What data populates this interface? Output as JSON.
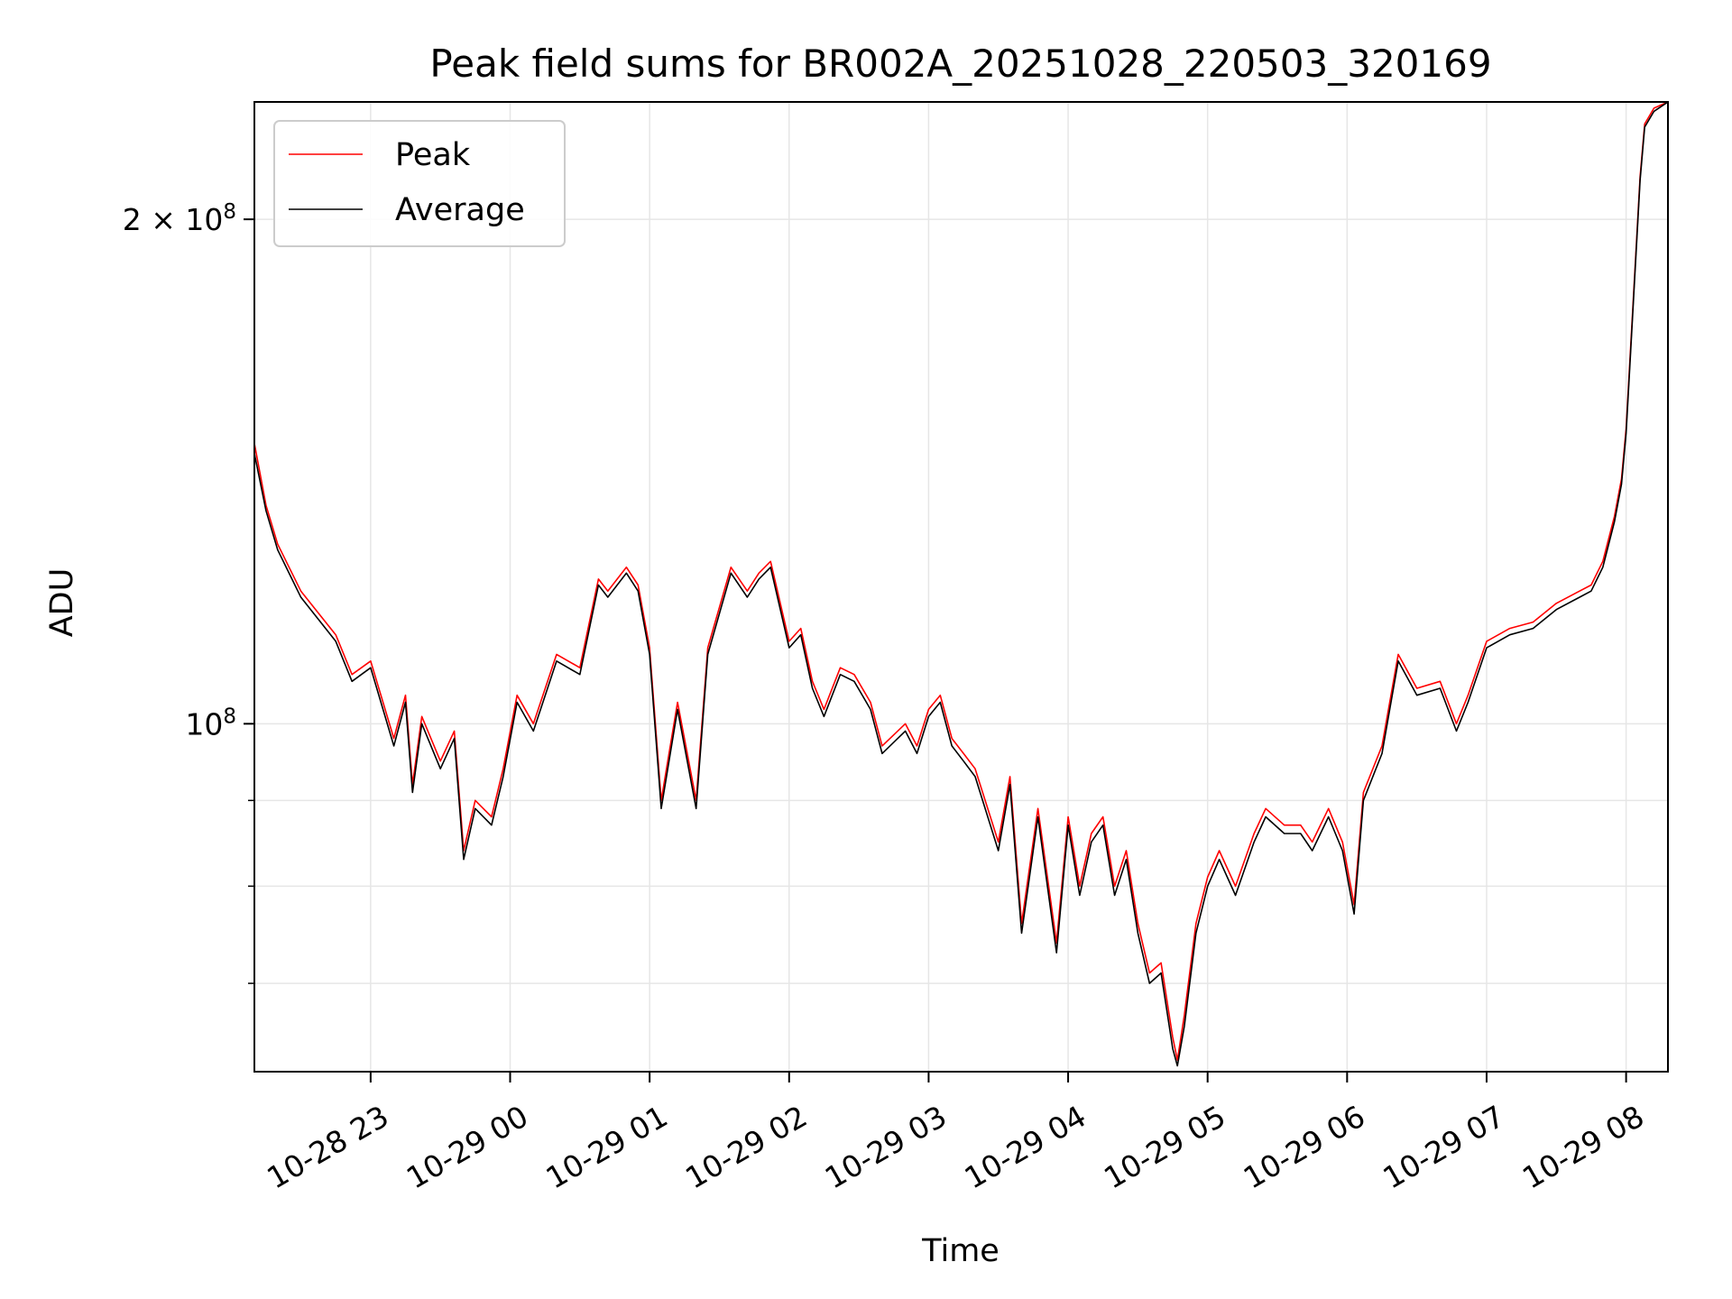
{
  "chart_data": {
    "type": "line",
    "title": "Peak field sums for BR002A_20251028_220503_320169",
    "xlabel": "Time",
    "ylabel": "ADU",
    "y_scale": "log",
    "ylim": [
      62000000,
      235000000
    ],
    "xlim": [
      "2025-10-28 22:10",
      "2025-10-29 08:18"
    ],
    "grid": true,
    "legend": {
      "position": "top-left",
      "entries": [
        "Peak",
        "Average"
      ]
    },
    "x_ticks": [
      "10-28 23",
      "10-29 00",
      "10-29 01",
      "10-29 02",
      "10-29 03",
      "10-29 04",
      "10-29 05",
      "10-29 06",
      "10-29 07",
      "10-29 08"
    ],
    "x_tick_times": [
      "2025-10-28 23:00",
      "2025-10-29 00:00",
      "2025-10-29 01:00",
      "2025-10-29 02:00",
      "2025-10-29 03:00",
      "2025-10-29 04:00",
      "2025-10-29 05:00",
      "2025-10-29 06:00",
      "2025-10-29 07:00",
      "2025-10-29 08:00"
    ],
    "y_major_ticks": [
      {
        "value": 100000000,
        "mantissa": "",
        "exp": "8"
      },
      {
        "value": 200000000,
        "mantissa": "2",
        "exp": "8"
      }
    ],
    "y_minor_ticks": [
      70000000,
      80000000,
      90000000
    ],
    "series": [
      {
        "name": "Peak",
        "color": "#ff0000",
        "x": [
          "2025-10-28 22:10",
          "2025-10-28 22:15",
          "2025-10-28 22:20",
          "2025-10-28 22:30",
          "2025-10-28 22:45",
          "2025-10-28 22:52",
          "2025-10-28 23:00",
          "2025-10-28 23:10",
          "2025-10-28 23:15",
          "2025-10-28 23:18",
          "2025-10-28 23:22",
          "2025-10-28 23:30",
          "2025-10-28 23:36",
          "2025-10-28 23:40",
          "2025-10-28 23:45",
          "2025-10-28 23:52",
          "2025-10-28 23:57",
          "2025-10-29 00:03",
          "2025-10-29 00:10",
          "2025-10-29 00:20",
          "2025-10-29 00:30",
          "2025-10-29 00:38",
          "2025-10-29 00:42",
          "2025-10-29 00:50",
          "2025-10-29 00:55",
          "2025-10-29 01:00",
          "2025-10-29 01:05",
          "2025-10-29 01:12",
          "2025-10-29 01:20",
          "2025-10-29 01:25",
          "2025-10-29 01:35",
          "2025-10-29 01:42",
          "2025-10-29 01:47",
          "2025-10-29 01:52",
          "2025-10-29 02:00",
          "2025-10-29 02:05",
          "2025-10-29 02:10",
          "2025-10-29 02:15",
          "2025-10-29 02:22",
          "2025-10-29 02:28",
          "2025-10-29 02:35",
          "2025-10-29 02:40",
          "2025-10-29 02:50",
          "2025-10-29 02:55",
          "2025-10-29 03:00",
          "2025-10-29 03:05",
          "2025-10-29 03:10",
          "2025-10-29 03:15",
          "2025-10-29 03:20",
          "2025-10-29 03:30",
          "2025-10-29 03:35",
          "2025-10-29 03:40",
          "2025-10-29 03:47",
          "2025-10-29 03:55",
          "2025-10-29 04:00",
          "2025-10-29 04:05",
          "2025-10-29 04:10",
          "2025-10-29 04:15",
          "2025-10-29 04:20",
          "2025-10-29 04:25",
          "2025-10-29 04:30",
          "2025-10-29 04:35",
          "2025-10-29 04:40",
          "2025-10-29 04:45",
          "2025-10-29 04:47",
          "2025-10-29 04:50",
          "2025-10-29 04:55",
          "2025-10-29 05:00",
          "2025-10-29 05:05",
          "2025-10-29 05:12",
          "2025-10-29 05:20",
          "2025-10-29 05:25",
          "2025-10-29 05:33",
          "2025-10-29 05:40",
          "2025-10-29 05:45",
          "2025-10-29 05:52",
          "2025-10-29 05:58",
          "2025-10-29 06:03",
          "2025-10-29 06:07",
          "2025-10-29 06:15",
          "2025-10-29 06:22",
          "2025-10-29 06:30",
          "2025-10-29 06:40",
          "2025-10-29 06:47",
          "2025-10-29 06:52",
          "2025-10-29 07:00",
          "2025-10-29 07:10",
          "2025-10-29 07:20",
          "2025-10-29 07:30",
          "2025-10-29 07:40",
          "2025-10-29 07:45",
          "2025-10-29 07:50",
          "2025-10-29 07:55",
          "2025-10-29 07:58",
          "2025-10-29 08:00",
          "2025-10-29 08:03",
          "2025-10-29 08:06",
          "2025-10-29 08:08",
          "2025-10-29 08:12",
          "2025-10-29 08:18"
        ],
        "y": [
          147000000,
          135000000,
          128000000,
          120000000,
          113000000,
          107000000,
          109000000,
          98000000,
          104000000,
          92000000,
          101000000,
          95000000,
          99000000,
          84000000,
          90000000,
          88000000,
          94000000,
          104000000,
          100000000,
          110000000,
          108000000,
          122000000,
          120000000,
          124000000,
          121000000,
          111000000,
          90000000,
          103000000,
          90000000,
          111000000,
          124000000,
          120000000,
          123000000,
          125000000,
          112000000,
          114000000,
          106000000,
          102000000,
          108000000,
          107000000,
          103000000,
          97000000,
          100000000,
          97000000,
          102000000,
          104000000,
          98000000,
          96000000,
          94000000,
          85000000,
          93000000,
          76000000,
          89000000,
          74000000,
          88000000,
          80000000,
          86000000,
          88000000,
          80000000,
          84000000,
          76000000,
          71000000,
          72000000,
          65000000,
          63000000,
          67000000,
          76000000,
          81000000,
          84000000,
          80000000,
          86000000,
          89000000,
          87000000,
          87000000,
          85000000,
          89000000,
          85000000,
          78000000,
          91000000,
          97000000,
          110000000,
          105000000,
          106000000,
          100000000,
          104000000,
          112000000,
          114000000,
          115000000,
          118000000,
          120000000,
          121000000,
          125000000,
          133000000,
          140000000,
          150000000,
          178000000,
          212000000,
          228000000,
          233000000,
          235000000
        ]
      },
      {
        "name": "Average",
        "color": "#000000",
        "x": [
          "2025-10-28 22:10",
          "2025-10-28 22:15",
          "2025-10-28 22:20",
          "2025-10-28 22:30",
          "2025-10-28 22:45",
          "2025-10-28 22:52",
          "2025-10-28 23:00",
          "2025-10-28 23:10",
          "2025-10-28 23:15",
          "2025-10-28 23:18",
          "2025-10-28 23:22",
          "2025-10-28 23:30",
          "2025-10-28 23:36",
          "2025-10-28 23:40",
          "2025-10-28 23:45",
          "2025-10-28 23:52",
          "2025-10-28 23:57",
          "2025-10-29 00:03",
          "2025-10-29 00:10",
          "2025-10-29 00:20",
          "2025-10-29 00:30",
          "2025-10-29 00:38",
          "2025-10-29 00:42",
          "2025-10-29 00:50",
          "2025-10-29 00:55",
          "2025-10-29 01:00",
          "2025-10-29 01:05",
          "2025-10-29 01:12",
          "2025-10-29 01:20",
          "2025-10-29 01:25",
          "2025-10-29 01:35",
          "2025-10-29 01:42",
          "2025-10-29 01:47",
          "2025-10-29 01:52",
          "2025-10-29 02:00",
          "2025-10-29 02:05",
          "2025-10-29 02:10",
          "2025-10-29 02:15",
          "2025-10-29 02:22",
          "2025-10-29 02:28",
          "2025-10-29 02:35",
          "2025-10-29 02:40",
          "2025-10-29 02:50",
          "2025-10-29 02:55",
          "2025-10-29 03:00",
          "2025-10-29 03:05",
          "2025-10-29 03:10",
          "2025-10-29 03:15",
          "2025-10-29 03:20",
          "2025-10-29 03:30",
          "2025-10-29 03:35",
          "2025-10-29 03:40",
          "2025-10-29 03:47",
          "2025-10-29 03:55",
          "2025-10-29 04:00",
          "2025-10-29 04:05",
          "2025-10-29 04:10",
          "2025-10-29 04:15",
          "2025-10-29 04:20",
          "2025-10-29 04:25",
          "2025-10-29 04:30",
          "2025-10-29 04:35",
          "2025-10-29 04:40",
          "2025-10-29 04:45",
          "2025-10-29 04:47",
          "2025-10-29 04:50",
          "2025-10-29 04:55",
          "2025-10-29 05:00",
          "2025-10-29 05:05",
          "2025-10-29 05:12",
          "2025-10-29 05:20",
          "2025-10-29 05:25",
          "2025-10-29 05:33",
          "2025-10-29 05:40",
          "2025-10-29 05:45",
          "2025-10-29 05:52",
          "2025-10-29 05:58",
          "2025-10-29 06:03",
          "2025-10-29 06:07",
          "2025-10-29 06:15",
          "2025-10-29 06:22",
          "2025-10-29 06:30",
          "2025-10-29 06:40",
          "2025-10-29 06:47",
          "2025-10-29 06:52",
          "2025-10-29 07:00",
          "2025-10-29 07:10",
          "2025-10-29 07:20",
          "2025-10-29 07:30",
          "2025-10-29 07:40",
          "2025-10-29 07:45",
          "2025-10-29 07:50",
          "2025-10-29 07:55",
          "2025-10-29 07:58",
          "2025-10-29 08:00",
          "2025-10-29 08:03",
          "2025-10-29 08:06",
          "2025-10-29 08:08",
          "2025-10-29 08:12",
          "2025-10-29 08:18"
        ],
        "y": [
          145000000,
          134000000,
          127000000,
          119000000,
          112000000,
          106000000,
          108000000,
          97000000,
          103000000,
          91000000,
          100000000,
          94000000,
          98000000,
          83000000,
          89000000,
          87000000,
          93000000,
          103000000,
          99000000,
          109000000,
          107000000,
          121000000,
          119000000,
          123000000,
          120000000,
          110000000,
          89000000,
          102000000,
          89000000,
          110000000,
          123000000,
          119000000,
          122000000,
          124000000,
          111000000,
          113000000,
          105000000,
          101000000,
          107000000,
          106000000,
          102000000,
          96000000,
          99000000,
          96000000,
          101000000,
          103000000,
          97000000,
          95000000,
          93000000,
          84000000,
          92000000,
          75000000,
          88000000,
          73000000,
          87000000,
          79000000,
          85000000,
          87000000,
          79000000,
          83000000,
          75000000,
          70000000,
          71000000,
          64000000,
          62500000,
          66000000,
          75000000,
          80000000,
          83000000,
          79000000,
          85000000,
          88000000,
          86000000,
          86000000,
          84000000,
          88000000,
          84000000,
          77000000,
          90000000,
          96000000,
          109000000,
          104000000,
          105000000,
          99000000,
          103000000,
          111000000,
          113000000,
          114000000,
          117000000,
          119000000,
          120000000,
          124000000,
          132000000,
          139000000,
          149000000,
          177000000,
          211000000,
          227000000,
          232000000,
          235000000
        ]
      }
    ]
  }
}
